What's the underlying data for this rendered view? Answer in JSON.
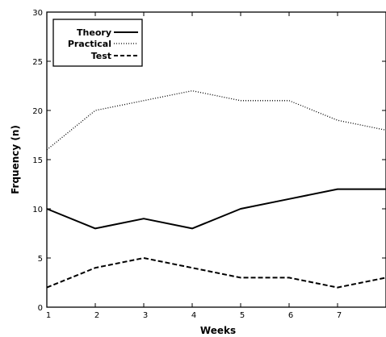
{
  "chart_data": {
    "type": "line",
    "title": "",
    "xlabel": "Weeks",
    "ylabel": "Frquency (n)",
    "xlim": [
      1,
      8
    ],
    "ylim": [
      0,
      30
    ],
    "x": [
      1,
      2,
      3,
      4,
      5,
      6,
      7,
      8
    ],
    "x_ticks": [
      "1",
      "2",
      "3",
      "4",
      "5",
      "6",
      "7"
    ],
    "y_ticks": [
      "0",
      "5",
      "10",
      "15",
      "20",
      "25",
      "30"
    ],
    "grid": false,
    "legend_position": "top-left",
    "series": [
      {
        "name": "Theory",
        "style": "solid",
        "color": "#000000",
        "values": [
          10,
          8,
          9,
          8,
          10,
          11,
          12,
          12
        ]
      },
      {
        "name": "Practical",
        "style": "dotted",
        "color": "#000000",
        "values": [
          16,
          20,
          21,
          22,
          21,
          21,
          19,
          18
        ]
      },
      {
        "name": "Test",
        "style": "dashed",
        "color": "#000000",
        "values": [
          2,
          4,
          5,
          4,
          3,
          3,
          2,
          3
        ]
      }
    ]
  }
}
